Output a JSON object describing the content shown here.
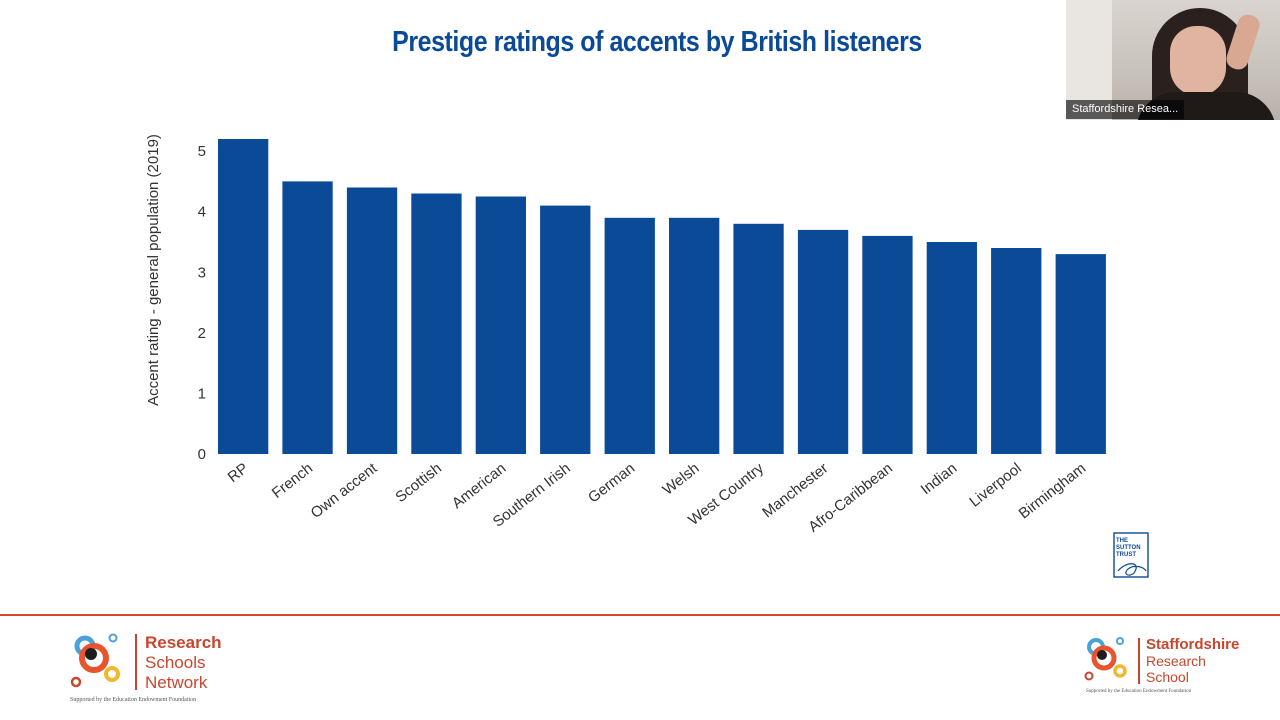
{
  "slide": {
    "title": "Prestige ratings of accents by British listeners"
  },
  "chart_data": {
    "type": "bar",
    "title": "Prestige ratings of accents by British listeners",
    "xlabel": "",
    "ylabel": "Accent rating - general population (2019)",
    "ylim": [
      0,
      5.2
    ],
    "yticks": [
      0,
      1,
      2,
      3,
      4,
      5
    ],
    "grid": false,
    "legend": "none",
    "bar_color": "#0b4a96",
    "categories": [
      "RP",
      "French",
      "Own accent",
      "Scottish",
      "American",
      "Southern Irish",
      "German",
      "Welsh",
      "West Country",
      "Manchester",
      "Afro-Caribbean",
      "Indian",
      "Liverpool",
      "Birmingham"
    ],
    "values": [
      5.2,
      4.5,
      4.4,
      4.3,
      4.25,
      4.1,
      3.9,
      3.9,
      3.8,
      3.7,
      3.6,
      3.5,
      3.4,
      3.3
    ]
  },
  "video": {
    "participant_name": "Staffordshire Resea..."
  },
  "footer": {
    "left_logo": {
      "line1": "Research",
      "line2": "Schools",
      "line3": "Network",
      "support": "Supported by the Education Endowment Foundation"
    },
    "right_logo": {
      "line1": "Staffordshire",
      "line2": "Research",
      "line3": "School",
      "support": "Supported by the Education Endowment Foundation"
    },
    "sutton_trust": {
      "line1": "THE",
      "line2": "SUTTON",
      "line3": "TRUST"
    }
  },
  "colors": {
    "accent_blue": "#0b4a96",
    "accent_red": "#c8462d",
    "footer_line": "#d8462e"
  }
}
